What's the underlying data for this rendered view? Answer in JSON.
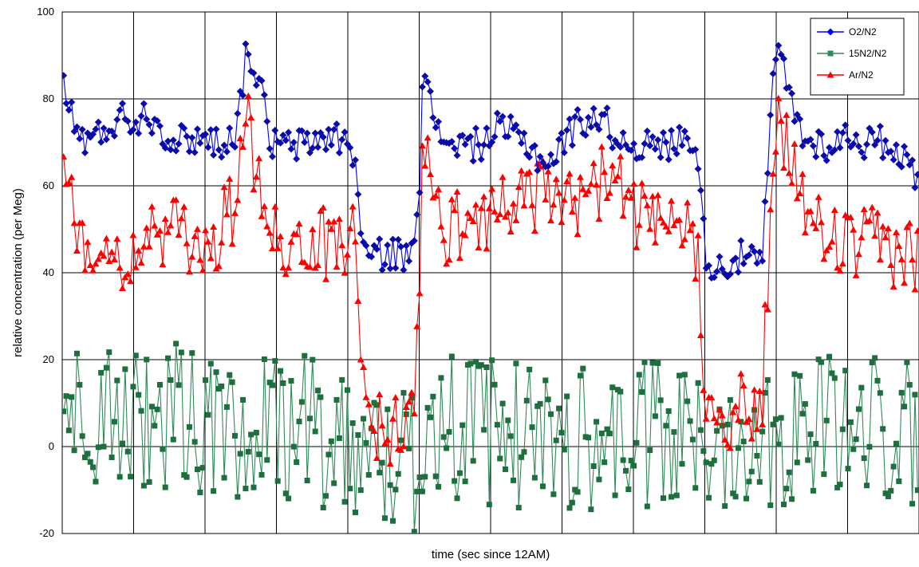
{
  "chart_data": {
    "type": "line",
    "title": "",
    "xlabel": "time (sec since 12AM)",
    "ylabel": "relative concentration (per Meg)",
    "ylim": [
      -20,
      100
    ],
    "yticks": [
      -20,
      0,
      20,
      40,
      60,
      80,
      100
    ],
    "x_range": [
      0,
      12
    ],
    "x_gridlines": 12,
    "x_tick_labels": [],
    "grid": true,
    "legend_position": "top-right",
    "series": [
      {
        "name": "O2/N2",
        "color": "#0000ff",
        "marker": "diamond",
        "key_points": [
          [
            0,
            85
          ],
          [
            0.1,
            78
          ],
          [
            0.2,
            72
          ],
          [
            0.4,
            70
          ],
          [
            0.6,
            73
          ],
          [
            0.8,
            76
          ],
          [
            1.0,
            75
          ],
          [
            1.2,
            77
          ],
          [
            1.4,
            73
          ],
          [
            1.6,
            70
          ],
          [
            1.8,
            71
          ],
          [
            2.0,
            71
          ],
          [
            2.2,
            70
          ],
          [
            2.4,
            71
          ],
          [
            2.5,
            80
          ],
          [
            2.6,
            93
          ],
          [
            2.7,
            86
          ],
          [
            2.8,
            81
          ],
          [
            2.9,
            70
          ],
          [
            3.2,
            69
          ],
          [
            3.5,
            70
          ],
          [
            3.8,
            72
          ],
          [
            4.0,
            69
          ],
          [
            4.1,
            67
          ],
          [
            4.2,
            46
          ],
          [
            4.3,
            44
          ],
          [
            4.5,
            44
          ],
          [
            4.7,
            45
          ],
          [
            4.8,
            42
          ],
          [
            4.9,
            47
          ],
          [
            5.0,
            58
          ],
          [
            5.05,
            90
          ],
          [
            5.1,
            88
          ],
          [
            5.2,
            72
          ],
          [
            5.5,
            70
          ],
          [
            5.7,
            69
          ],
          [
            5.9,
            70
          ],
          [
            6.1,
            73
          ],
          [
            6.3,
            72
          ],
          [
            6.5,
            70
          ],
          [
            6.7,
            66
          ],
          [
            6.9,
            66
          ],
          [
            7.0,
            70
          ],
          [
            7.2,
            74
          ],
          [
            7.4,
            76
          ],
          [
            7.6,
            75
          ],
          [
            7.8,
            70
          ],
          [
            8.0,
            70
          ],
          [
            8.2,
            69
          ],
          [
            8.4,
            69
          ],
          [
            8.6,
            70
          ],
          [
            8.8,
            72
          ],
          [
            8.9,
            67
          ],
          [
            9.0,
            45
          ],
          [
            9.1,
            42
          ],
          [
            9.2,
            41
          ],
          [
            9.4,
            43
          ],
          [
            9.6,
            44
          ],
          [
            9.8,
            41
          ],
          [
            9.9,
            70
          ],
          [
            10.0,
            92
          ],
          [
            10.1,
            87
          ],
          [
            10.2,
            80
          ],
          [
            10.3,
            75
          ],
          [
            10.4,
            70
          ],
          [
            10.6,
            70
          ],
          [
            10.8,
            69
          ],
          [
            11.0,
            72
          ],
          [
            11.2,
            70
          ],
          [
            11.4,
            70
          ],
          [
            11.6,
            70
          ],
          [
            11.8,
            66
          ],
          [
            12.0,
            62
          ]
        ],
        "noise": 2.4
      },
      {
        "name": "15N2/N2",
        "color": "#2e8b57",
        "marker": "square",
        "key_points": [
          [
            0,
            4
          ],
          [
            1.0,
            7
          ],
          [
            2.0,
            6
          ],
          [
            3.0,
            4
          ],
          [
            4.0,
            3
          ],
          [
            4.2,
            0
          ],
          [
            4.6,
            -4
          ],
          [
            5.0,
            -3
          ],
          [
            5.1,
            10
          ],
          [
            5.2,
            6
          ],
          [
            6.0,
            3
          ],
          [
            7.0,
            2
          ],
          [
            8.0,
            2
          ],
          [
            9.0,
            1
          ],
          [
            9.4,
            3
          ],
          [
            10.0,
            4
          ],
          [
            11.0,
            5
          ],
          [
            12.0,
            4
          ]
        ],
        "noise": 11
      },
      {
        "name": "Ar/N2",
        "color": "#ff0000",
        "marker": "triangle",
        "key_points": [
          [
            0,
            60
          ],
          [
            0.2,
            50
          ],
          [
            0.5,
            48
          ],
          [
            0.8,
            44
          ],
          [
            1.0,
            45
          ],
          [
            1.3,
            49
          ],
          [
            1.6,
            48
          ],
          [
            1.9,
            47
          ],
          [
            2.2,
            49
          ],
          [
            2.4,
            55
          ],
          [
            2.6,
            75
          ],
          [
            2.7,
            60
          ],
          [
            2.9,
            54
          ],
          [
            3.2,
            45
          ],
          [
            3.5,
            47
          ],
          [
            3.8,
            46
          ],
          [
            4.0,
            49
          ],
          [
            4.1,
            47
          ],
          [
            4.2,
            18
          ],
          [
            4.3,
            8
          ],
          [
            4.5,
            3
          ],
          [
            4.7,
            4
          ],
          [
            4.9,
            8
          ],
          [
            5.0,
            30
          ],
          [
            5.05,
            73
          ],
          [
            5.1,
            68
          ],
          [
            5.2,
            52
          ],
          [
            5.5,
            50
          ],
          [
            5.8,
            53
          ],
          [
            6.1,
            55
          ],
          [
            6.4,
            57
          ],
          [
            6.7,
            58
          ],
          [
            7.0,
            54
          ],
          [
            7.3,
            57
          ],
          [
            7.6,
            62
          ],
          [
            7.9,
            58
          ],
          [
            8.2,
            50
          ],
          [
            8.5,
            48
          ],
          [
            8.8,
            50
          ],
          [
            8.9,
            45
          ],
          [
            9.0,
            15
          ],
          [
            9.1,
            10
          ],
          [
            9.3,
            8
          ],
          [
            9.6,
            8
          ],
          [
            9.8,
            10
          ],
          [
            9.9,
            45
          ],
          [
            10.0,
            72
          ],
          [
            10.1,
            70
          ],
          [
            10.3,
            62
          ],
          [
            10.5,
            50
          ],
          [
            10.8,
            48
          ],
          [
            11.1,
            45
          ],
          [
            11.4,
            47
          ],
          [
            11.7,
            45
          ],
          [
            12.0,
            44
          ]
        ],
        "noise": 5.5
      }
    ]
  }
}
